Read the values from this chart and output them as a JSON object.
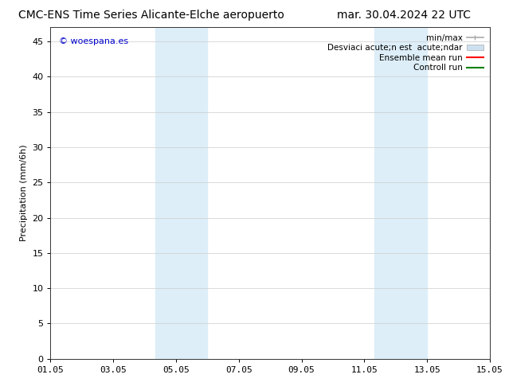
{
  "title": "CMC-ENS Time Series Alicante-Elche aeropuerto",
  "title_right": "mar. 30.04.2024 22 UTC",
  "ylabel": "Precipitation (mm/6h)",
  "ylim": [
    0,
    47
  ],
  "yticks": [
    0,
    5,
    10,
    15,
    20,
    25,
    30,
    35,
    40,
    45
  ],
  "xtick_labels": [
    "01.05",
    "03.05",
    "05.05",
    "07.05",
    "09.05",
    "11.05",
    "13.05",
    "15.05"
  ],
  "xtick_positions": [
    0,
    2,
    4,
    6,
    8,
    10,
    12,
    14
  ],
  "shaded_regions": [
    {
      "xmin": 3.33,
      "xmax": 5.0,
      "color": "#ddeef8"
    },
    {
      "xmin": 10.33,
      "xmax": 12.0,
      "color": "#ddeef8"
    }
  ],
  "copyright_text": "© woespana.es",
  "copyright_color": "#0000cc",
  "legend_line1": "min/max",
  "legend_line2": "Desviaci acute;n est  acute;ndar",
  "legend_line3": "Ensemble mean run",
  "legend_line4": "Controll run",
  "legend_color1": "#aaaaaa",
  "legend_color2": "#cce0f0",
  "legend_color3": "#ff0000",
  "legend_color4": "#008000",
  "bg_color": "#ffffff",
  "title_fontsize": 10,
  "axis_fontsize": 8,
  "tick_fontsize": 8,
  "legend_fontsize": 7.5,
  "copyright_fontsize": 8
}
